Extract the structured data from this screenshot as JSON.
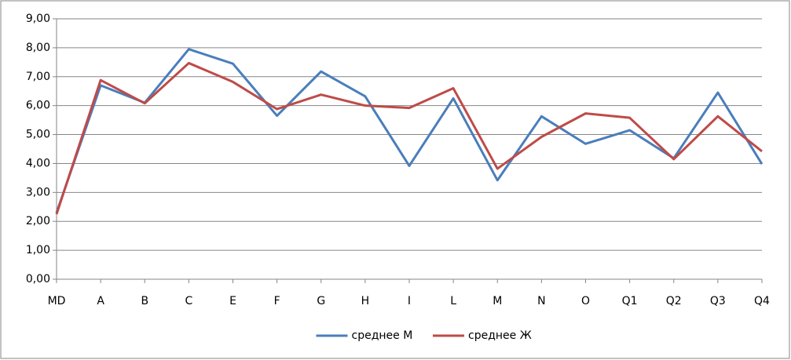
{
  "chart_data": {
    "type": "line",
    "categories": [
      "MD",
      "A",
      "B",
      "C",
      "E",
      "F",
      "G",
      "H",
      "I",
      "L",
      "M",
      "N",
      "O",
      "Q1",
      "Q2",
      "Q3",
      "Q4"
    ],
    "series": [
      {
        "name": "среднее М",
        "color": "#4a7ebb",
        "values": [
          2.3,
          6.7,
          6.1,
          7.95,
          7.45,
          5.65,
          7.18,
          6.32,
          3.92,
          6.25,
          3.42,
          5.63,
          4.68,
          5.15,
          4.18,
          6.45,
          3.98
        ]
      },
      {
        "name": "среднее Ж",
        "color": "#be4b48",
        "values": [
          2.25,
          6.88,
          6.08,
          7.47,
          6.82,
          5.88,
          6.38,
          6.0,
          5.92,
          6.6,
          3.82,
          4.92,
          5.73,
          5.58,
          4.15,
          5.63,
          4.42
        ]
      }
    ],
    "ylim": [
      0,
      9
    ],
    "yticks": [
      {
        "value": 0,
        "label": "0,00"
      },
      {
        "value": 1,
        "label": "1,00"
      },
      {
        "value": 2,
        "label": "2,00"
      },
      {
        "value": 3,
        "label": "3,00"
      },
      {
        "value": 4,
        "label": "4,00"
      },
      {
        "value": 5,
        "label": "5,00"
      },
      {
        "value": 6,
        "label": "6,00"
      },
      {
        "value": 7,
        "label": "7,00"
      },
      {
        "value": 8,
        "label": "8,00"
      },
      {
        "value": 9,
        "label": "9,00"
      }
    ],
    "grid": true,
    "legend": "bottom"
  }
}
